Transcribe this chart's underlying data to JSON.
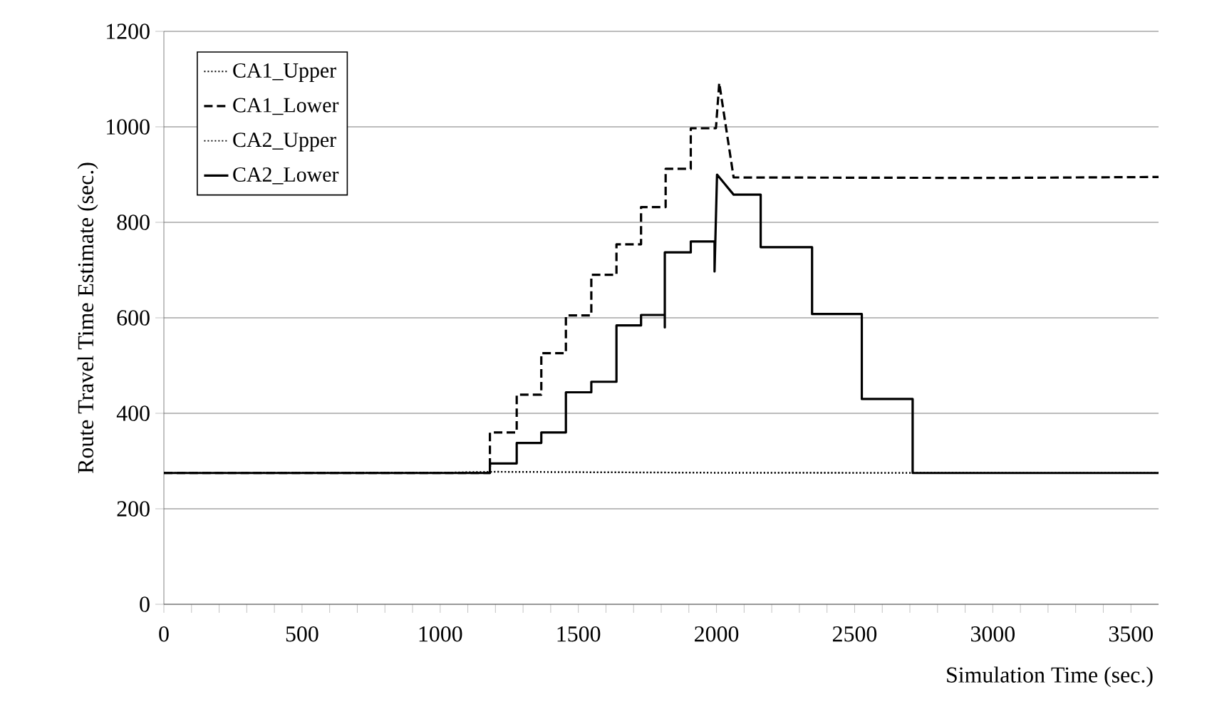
{
  "chart_data": {
    "type": "line",
    "xlabel": "Simulation Time (sec.)",
    "ylabel": "Route Travel Time Estimate (sec.)",
    "xlim": [
      0,
      3600
    ],
    "ylim": [
      0,
      1200
    ],
    "xticks": [
      0,
      500,
      1000,
      1500,
      2000,
      2500,
      3000,
      3500
    ],
    "yticks": [
      0,
      200,
      400,
      600,
      800,
      1000,
      1200
    ],
    "grid": "y",
    "legend": "top left",
    "marker": "none",
    "series": [
      {
        "name": "CA1_Upper",
        "color": "#000000",
        "line_style": "dotted",
        "x": [
          0,
          1000,
          1200,
          2000,
          3600
        ],
        "values": [
          275,
          276,
          278,
          276,
          275
        ]
      },
      {
        "name": "CA1_Lower",
        "color": "#000000",
        "line_style": "dashed",
        "x": [
          0,
          1180,
          1180,
          1277,
          1277,
          1366,
          1366,
          1455,
          1455,
          1547,
          1547,
          1638,
          1638,
          1727,
          1727,
          1816,
          1816,
          1907,
          1907,
          1998,
          2010,
          2062,
          3000,
          3600
        ],
        "values": [
          275,
          275,
          360,
          360,
          439,
          439,
          526,
          526,
          605,
          605,
          690,
          690,
          754,
          754,
          832,
          832,
          912,
          912,
          997,
          997,
          1092,
          894,
          893,
          895
        ]
      },
      {
        "name": "CA2_Upper",
        "color": "#000000",
        "line_style": "dotted",
        "x": [
          0,
          1000,
          1200,
          2000,
          3600
        ],
        "values": [
          275,
          276,
          277,
          275,
          275
        ]
      },
      {
        "name": "CA2_Lower",
        "color": "#000000",
        "line_style": "solid",
        "x": [
          0,
          1180,
          1180,
          1277,
          1277,
          1366,
          1366,
          1455,
          1455,
          1547,
          1547,
          1638,
          1638,
          1727,
          1727,
          1813,
          1813,
          1813,
          1907,
          1907,
          1993,
          1993,
          2002,
          2062,
          2160,
          2160,
          2346,
          2346,
          2526,
          2526,
          2710,
          2710,
          3600
        ],
        "values": [
          275,
          275,
          295,
          295,
          338,
          338,
          360,
          360,
          444,
          444,
          466,
          466,
          584,
          584,
          606,
          606,
          580,
          737,
          737,
          760,
          760,
          697,
          900,
          858,
          858,
          748,
          748,
          608,
          608,
          430,
          430,
          275,
          275
        ]
      }
    ]
  }
}
